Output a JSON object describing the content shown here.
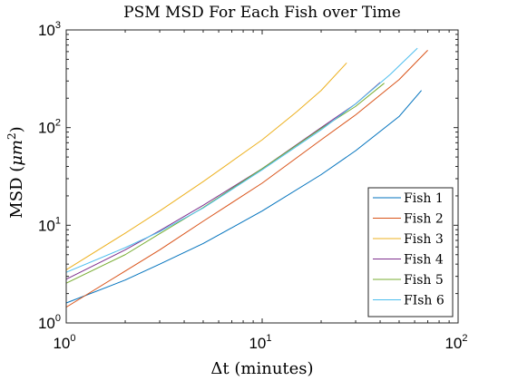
{
  "chart_data": {
    "type": "line",
    "title": "PSM MSD For Each Fish over Time",
    "xlabel": "Δt (minutes)",
    "ylabel_main": "MSD (",
    "ylabel_unit": "μm",
    "ylabel_exp": "2",
    "ylabel_close": ")",
    "x_scale": "log",
    "y_scale": "log",
    "xlim": [
      1,
      100
    ],
    "ylim": [
      1,
      1000
    ],
    "grid": false,
    "legend_position": "bottom-right",
    "x_ticks": [
      {
        "base": "10",
        "exp": "0",
        "value": 1
      },
      {
        "base": "10",
        "exp": "1",
        "value": 10
      },
      {
        "base": "10",
        "exp": "2",
        "value": 100
      }
    ],
    "y_ticks": [
      {
        "base": "10",
        "exp": "0",
        "value": 1
      },
      {
        "base": "10",
        "exp": "1",
        "value": 10
      },
      {
        "base": "10",
        "exp": "2",
        "value": 100
      },
      {
        "base": "10",
        "exp": "3",
        "value": 1000
      }
    ],
    "series": [
      {
        "name": "Fish 1",
        "color": "#0072BD",
        "x": [
          1,
          2,
          3,
          5,
          10,
          20,
          30,
          50,
          65
        ],
        "y": [
          1.6,
          2.75,
          4.0,
          6.5,
          14.0,
          33.0,
          58.0,
          130,
          240
        ]
      },
      {
        "name": "Fish 2",
        "color": "#D95319",
        "x": [
          1,
          2,
          3,
          5,
          10,
          20,
          30,
          50,
          70
        ],
        "y": [
          1.45,
          3.4,
          5.6,
          11.0,
          27.0,
          75.0,
          135,
          310,
          620
        ]
      },
      {
        "name": "Fish 3",
        "color": "#EDB120",
        "x": [
          1,
          2,
          3,
          5,
          10,
          15,
          20,
          27
        ],
        "y": [
          3.5,
          8.3,
          14.0,
          28.0,
          75.0,
          145,
          240,
          460
        ]
      },
      {
        "name": "Fish 4",
        "color": "#7E2F8E",
        "x": [
          1,
          2,
          3,
          5,
          10,
          20,
          30,
          40
        ],
        "y": [
          2.8,
          5.6,
          8.8,
          16.0,
          38.0,
          100,
          175,
          290
        ]
      },
      {
        "name": "Fish 5",
        "color": "#77AC30",
        "x": [
          1,
          2,
          3,
          5,
          10,
          20,
          30,
          42
        ],
        "y": [
          2.55,
          5.0,
          8.2,
          15.2,
          38.0,
          98.0,
          165,
          285
        ]
      },
      {
        "name": "FIsh 6",
        "color": "#4DBEEE",
        "x": [
          1,
          2,
          3,
          5,
          10,
          20,
          30,
          45,
          62
        ],
        "y": [
          3.3,
          5.9,
          8.6,
          15.0,
          37.0,
          95.0,
          175,
          350,
          650
        ]
      }
    ]
  }
}
